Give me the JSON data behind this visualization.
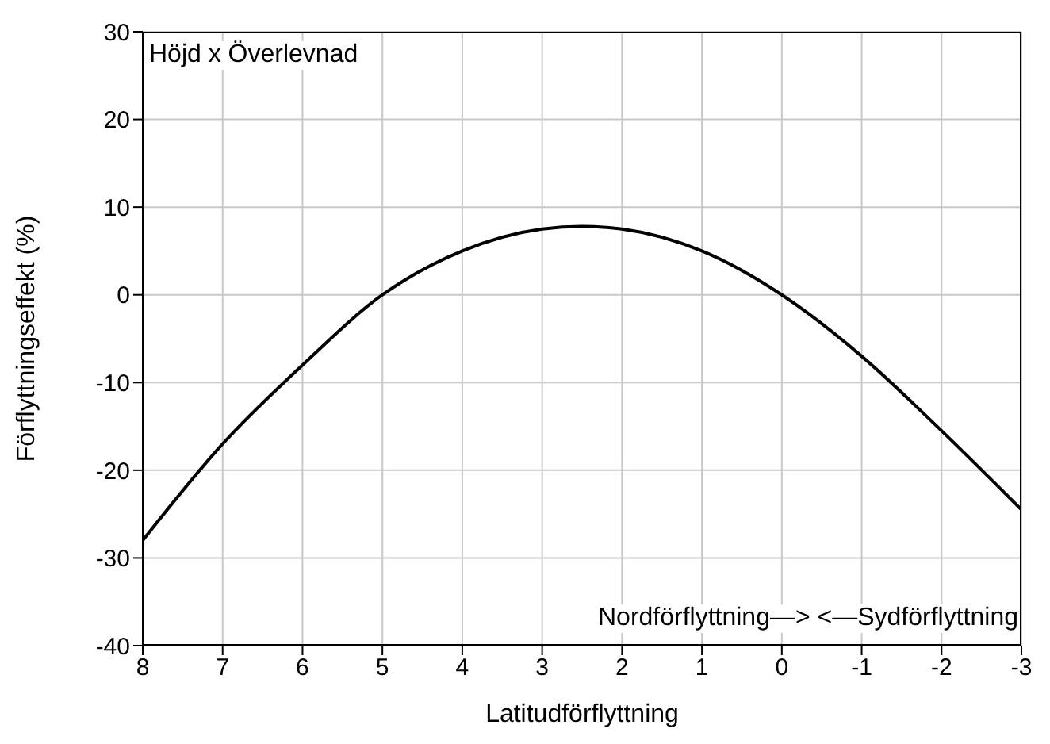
{
  "chart_data": {
    "type": "line",
    "xlabel": "Latitudförflyttning",
    "ylabel": "Förflyttningseffekt (%)",
    "annotations": [
      "Höjd x Överlevnad",
      "Nordförflyttning—> <—Sydförflyttning"
    ],
    "series": [
      {
        "color": "#000000",
        "x": [
          8,
          7,
          6,
          5,
          4,
          3,
          2.5,
          2,
          1,
          0,
          -1,
          -2,
          -3
        ],
        "values": [
          -28,
          -17,
          -8,
          0,
          5,
          7.5,
          7.8,
          7.5,
          5,
          0,
          -7,
          -15.5,
          -24.5
        ]
      }
    ],
    "xlim": [
      8,
      -3
    ],
    "xticks": [
      8,
      7,
      6,
      5,
      4,
      3,
      2,
      1,
      0,
      -1,
      -2,
      -3
    ],
    "ylim": [
      -40,
      30
    ],
    "yticks": [
      -40,
      -30,
      -20,
      -10,
      0,
      10,
      20,
      30
    ],
    "grid": true,
    "legend": false,
    "marker": "none",
    "line_style": "solid"
  }
}
